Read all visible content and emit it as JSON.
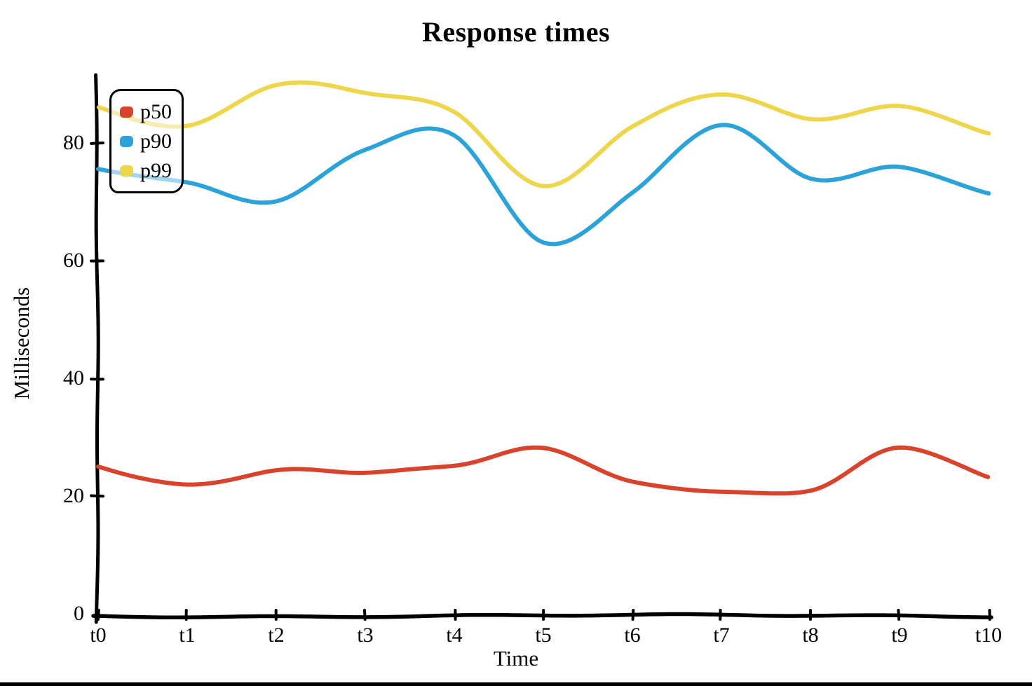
{
  "chart_data": {
    "type": "line",
    "title": "Response times",
    "xlabel": "Time",
    "ylabel": "Milliseconds",
    "style": "hand-drawn-xkcd",
    "grid": false,
    "legend_position": "top-left",
    "x_labels": [
      "t0",
      "t1",
      "t2",
      "t3",
      "t4",
      "t5",
      "t6",
      "t7",
      "t8",
      "t9",
      "t10"
    ],
    "y_ticks": [
      0,
      20,
      40,
      60,
      80
    ],
    "ylim": [
      0,
      91
    ],
    "axis_color": "#000000",
    "series": [
      {
        "name": "p50",
        "color": "#d9432c",
        "values": [
          25,
          22,
          24.5,
          24,
          25,
          28,
          22.5,
          21,
          21,
          28,
          23
        ]
      },
      {
        "name": "p90",
        "color": "#2ba3d9",
        "values": [
          75.5,
          73,
          70,
          79,
          81.5,
          63,
          71.5,
          83,
          74,
          76,
          71.5
        ]
      },
      {
        "name": "p99",
        "color": "#edd64b",
        "values": [
          86,
          83,
          90,
          88.5,
          85,
          72.5,
          83,
          88.5,
          84,
          86,
          81.5
        ]
      }
    ]
  }
}
